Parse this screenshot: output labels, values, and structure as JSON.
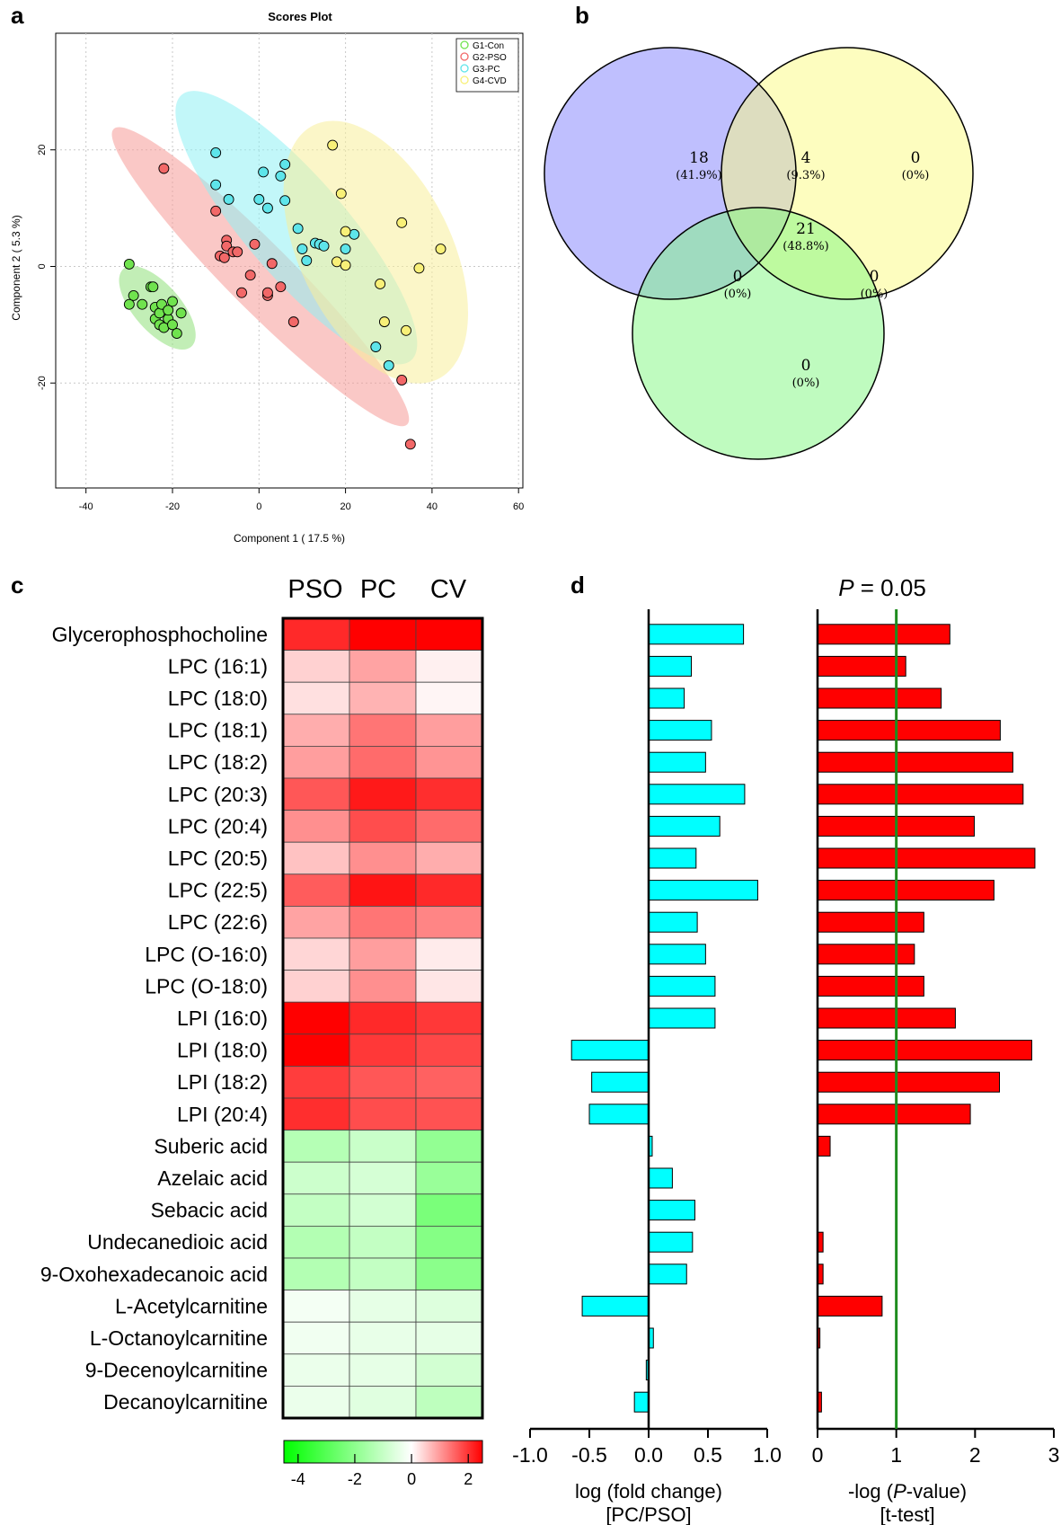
{
  "panels": {
    "a": "a",
    "b": "b",
    "c": "c",
    "d": "d"
  },
  "chart_data": [
    {
      "id": "a",
      "type": "scatter",
      "title": "Scores Plot",
      "xlabel": "Component 1 ( 17.5 %)",
      "ylabel": "Component 2 ( 5.3 %)",
      "xlim": [
        -47,
        61
      ],
      "ylim": [
        -38,
        40
      ],
      "xticks": [
        -40,
        -20,
        0,
        20,
        40,
        60
      ],
      "yticks": [
        -20,
        0,
        20
      ],
      "grid": true,
      "legend": "top-right",
      "series": [
        {
          "name": "G1-Con",
          "color": "#70e34e",
          "points": [
            [
              -30,
              0.4
            ],
            [
              -30,
              -6.5
            ],
            [
              -29,
              -5
            ],
            [
              -27,
              -6.5
            ],
            [
              -25,
              -3.5
            ],
            [
              -24.5,
              -3.5
            ],
            [
              -24,
              -7
            ],
            [
              -24,
              -9
            ],
            [
              -23,
              -8
            ],
            [
              -23,
              -10
            ],
            [
              -22.5,
              -6.5
            ],
            [
              -22,
              -10.5
            ],
            [
              -21,
              -9
            ],
            [
              -21,
              -7.5
            ],
            [
              -20,
              -6
            ],
            [
              -20,
              -10
            ],
            [
              -19,
              -11.5
            ],
            [
              -18,
              -8
            ]
          ]
        },
        {
          "name": "G2-PSO",
          "color": "#f26868",
          "points": [
            [
              -22,
              16.8
            ],
            [
              -10,
              9.5
            ],
            [
              -9,
              1.8
            ],
            [
              -8,
              1.5
            ],
            [
              -7.5,
              4.5
            ],
            [
              -7.5,
              3.5
            ],
            [
              -6,
              2.5
            ],
            [
              -5,
              2.5
            ],
            [
              -4,
              -4.5
            ],
            [
              -2,
              -1.5
            ],
            [
              -1,
              3.8
            ],
            [
              2,
              -5
            ],
            [
              2,
              -4.5
            ],
            [
              3,
              0.5
            ],
            [
              5,
              -3.5
            ],
            [
              8,
              -9.5
            ],
            [
              33,
              -19.5
            ],
            [
              35,
              -30.5
            ]
          ]
        },
        {
          "name": "G3-PC",
          "color": "#5ee5ea",
          "points": [
            [
              -10,
              19.5
            ],
            [
              -10,
              14
            ],
            [
              -7,
              11.5
            ],
            [
              0,
              11.5
            ],
            [
              1,
              16.2
            ],
            [
              2,
              10
            ],
            [
              5,
              15.5
            ],
            [
              6,
              17.5
            ],
            [
              6,
              11.3
            ],
            [
              9,
              6.5
            ],
            [
              10,
              3
            ],
            [
              11,
              1
            ],
            [
              13,
              4
            ],
            [
              14,
              3.8
            ],
            [
              15,
              3.5
            ],
            [
              20,
              3
            ],
            [
              22,
              5.5
            ],
            [
              27,
              -13.8
            ],
            [
              30,
              -17
            ]
          ]
        },
        {
          "name": "G4-CVD",
          "color": "#f8f078",
          "points": [
            [
              17,
              20.8
            ],
            [
              18,
              0.8
            ],
            [
              19,
              12.5
            ],
            [
              20,
              6
            ],
            [
              20,
              0.2
            ],
            [
              28,
              -3
            ],
            [
              29,
              -9.5
            ],
            [
              33,
              7.5
            ],
            [
              34,
              -11
            ],
            [
              37,
              -0.3
            ],
            [
              42,
              3
            ]
          ]
        }
      ],
      "ellipses": [
        {
          "group": "G1-Con",
          "color": "#8fe07a"
        },
        {
          "group": "G2-PSO",
          "color": "#f59a97"
        },
        {
          "group": "G3-PC",
          "color": "#8ff0f4"
        },
        {
          "group": "G4-CVD",
          "color": "#f7ef9a"
        }
      ]
    },
    {
      "id": "b",
      "type": "venn",
      "sets": [
        {
          "name": "blue",
          "color": "#7f7ffd"
        },
        {
          "name": "yellow",
          "color": "#fbfb7f"
        },
        {
          "name": "green",
          "color": "#7ff77f"
        }
      ],
      "regions": [
        {
          "region": "blue-only",
          "count": "18",
          "pct": "(41.9%)"
        },
        {
          "region": "blue-yellow",
          "count": "4",
          "pct": "(9.3%)"
        },
        {
          "region": "yellow-only",
          "count": "0",
          "pct": "(0%)"
        },
        {
          "region": "all",
          "count": "21",
          "pct": "(48.8%)"
        },
        {
          "region": "blue-green",
          "count": "0",
          "pct": "(0%)"
        },
        {
          "region": "yellow-green",
          "count": "0",
          "pct": "(0%)"
        },
        {
          "region": "green-only",
          "count": "0",
          "pct": "(0%)"
        }
      ]
    },
    {
      "id": "c",
      "type": "heatmap",
      "columns": [
        "PSO",
        "PC",
        "CV"
      ],
      "rows": [
        "Glycerophosphocholine",
        "LPC (16:1)",
        "LPC (18:0)",
        "LPC (18:1)",
        "LPC (18:2)",
        "LPC (20:3)",
        "LPC (20:4)",
        "LPC (20:5)",
        "LPC (22:5)",
        "LPC (22:6)",
        "LPC (O-16:0)",
        "LPC (O-18:0)",
        "LPI (16:0)",
        "LPI (18:0)",
        "LPI (18:2)",
        "LPI (20:4)",
        "Suberic acid",
        "Azelaic acid",
        "Sebacic acid",
        "Undecanedioic acid",
        "9-Oxohexadecanoic acid",
        "L-Acetylcarnitine",
        "L-Octanoylcarnitine",
        "9-Decenoylcarnitine",
        "Decanoylcarnitine"
      ],
      "values": [
        [
          2.1,
          2.5,
          2.5
        ],
        [
          0.45,
          0.9,
          0.15
        ],
        [
          0.3,
          0.75,
          0.1
        ],
        [
          0.8,
          1.35,
          0.95
        ],
        [
          0.95,
          1.45,
          1.05
        ],
        [
          1.65,
          2.25,
          2.05
        ],
        [
          1.1,
          1.75,
          1.45
        ],
        [
          0.6,
          1.1,
          0.8
        ],
        [
          1.6,
          2.3,
          2.1
        ],
        [
          0.9,
          1.35,
          1.2
        ],
        [
          0.4,
          0.95,
          0.2
        ],
        [
          0.45,
          1.1,
          0.25
        ],
        [
          2.5,
          2.1,
          1.95
        ],
        [
          2.5,
          1.95,
          1.8
        ],
        [
          1.9,
          1.65,
          1.55
        ],
        [
          2.05,
          1.75,
          1.7
        ],
        [
          -1.3,
          -0.95,
          -1.9
        ],
        [
          -0.9,
          -0.75,
          -1.8
        ],
        [
          -1.05,
          -0.8,
          -2.35
        ],
        [
          -1.35,
          -1.05,
          -2.15
        ],
        [
          -1.35,
          -1.05,
          -2.05
        ],
        [
          -0.2,
          -0.45,
          -0.6
        ],
        [
          -0.25,
          -0.4,
          -0.45
        ],
        [
          -0.35,
          -0.45,
          -0.8
        ],
        [
          -0.35,
          -0.55,
          -1.15
        ]
      ],
      "colorbar": {
        "min": -4.5,
        "max": 2.5,
        "ticks": [
          "-4",
          "-2",
          "0",
          "2"
        ],
        "tick_values": [
          -4,
          -2,
          0,
          2
        ]
      }
    },
    {
      "id": "d1",
      "type": "bar",
      "orientation": "horizontal",
      "categories": [
        "Glycerophosphocholine",
        "LPC (16:1)",
        "LPC (18:0)",
        "LPC (18:1)",
        "LPC (18:2)",
        "LPC (20:3)",
        "LPC (20:4)",
        "LPC (20:5)",
        "LPC (22:5)",
        "LPC (22:6)",
        "LPC (O-16:0)",
        "LPC (O-18:0)",
        "LPI (16:0)",
        "LPI (18:0)",
        "LPI (18:2)",
        "LPI (20:4)",
        "Suberic acid",
        "Azelaic acid",
        "Sebacic acid",
        "Undecanedioic acid",
        "9-Oxohexadecanoic acid",
        "L-Acetylcarnitine",
        "L-Octanoylcarnitine",
        "9-Decenoylcarnitine",
        "Decanoylcarnitine"
      ],
      "values": [
        0.8,
        0.36,
        0.3,
        0.53,
        0.48,
        0.81,
        0.6,
        0.4,
        0.92,
        0.41,
        0.48,
        0.56,
        0.56,
        -0.65,
        -0.48,
        -0.5,
        0.03,
        0.2,
        0.39,
        0.37,
        0.32,
        -0.56,
        0.04,
        -0.02,
        -0.12
      ],
      "xlim": [
        -1.0,
        1.0
      ],
      "xticks": [
        "-1.0",
        "-0.5",
        "0.0",
        "0.5",
        "1.0"
      ],
      "xtick_values": [
        -1.0,
        -0.5,
        0.0,
        0.5,
        1.0
      ],
      "xlabel": "log (fold change)",
      "xlabel2": "[PC/PSO]",
      "color": "#00ffff"
    },
    {
      "id": "d2",
      "type": "bar",
      "orientation": "horizontal",
      "categories": [
        "Glycerophosphocholine",
        "LPC (16:1)",
        "LPC (18:0)",
        "LPC (18:1)",
        "LPC (18:2)",
        "LPC (20:3)",
        "LPC (20:4)",
        "LPC (20:5)",
        "LPC (22:5)",
        "LPC (22:6)",
        "LPC (O-16:0)",
        "LPC (O-18:0)",
        "LPI (16:0)",
        "LPI (18:0)",
        "LPI (18:2)",
        "LPI (20:4)",
        "Suberic acid",
        "Azelaic acid",
        "Sebacic acid",
        "Undecanedioic acid",
        "9-Oxohexadecanoic acid",
        "L-Acetylcarnitine",
        "L-Octanoylcarnitine",
        "9-Decenoylcarnitine",
        "Decanoylcarnitine"
      ],
      "values": [
        1.68,
        1.12,
        1.57,
        2.32,
        2.48,
        2.61,
        1.99,
        2.76,
        2.24,
        1.35,
        1.23,
        1.35,
        1.75,
        2.72,
        2.31,
        1.94,
        0.16,
        0,
        0,
        0.07,
        0.07,
        0.82,
        0.03,
        0,
        0.05
      ],
      "xlim": [
        0,
        3
      ],
      "xticks": [
        "0",
        "1",
        "2",
        "3"
      ],
      "xtick_values": [
        0,
        1,
        2,
        3
      ],
      "xlabel_parts": [
        "-log (",
        "P",
        "-value)"
      ],
      "xlabel2": "[t-test]",
      "threshold": {
        "value": 1,
        "label_italic": "P",
        "label_rest": " = 0.05"
      },
      "color": "#ff0000"
    }
  ]
}
